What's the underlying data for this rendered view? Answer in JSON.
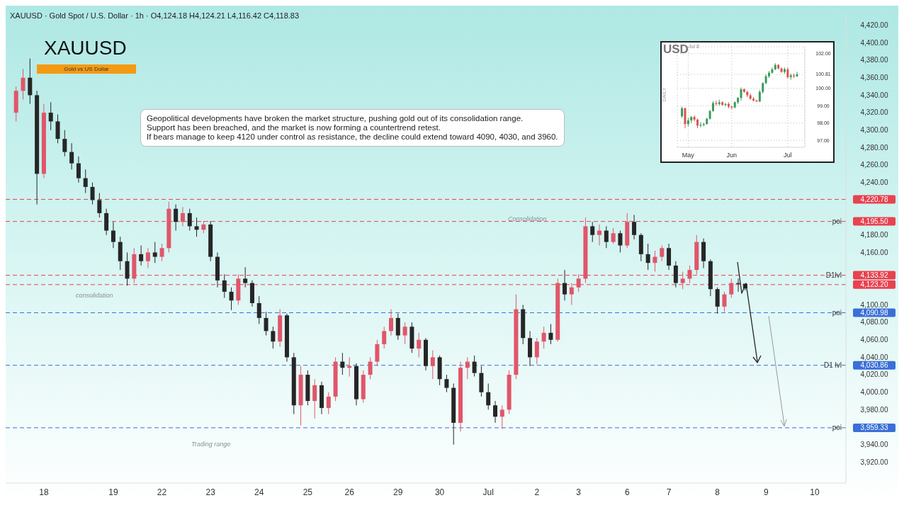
{
  "chart_data": [
    {
      "type": "candlestick",
      "title": "XAUUSD",
      "subtitle": "Gold vs US Dollar",
      "annotations": [
        "XAUUSD · Gold Spot / U.S. Dollar · 1h · O4,124.18 H4,124.21 L4,116.42 C4,118.83",
        "Geopolitical developments have broken the market structure, pushing gold out of its consolidation range.\nSupport has been breached, and the market is now forming a countertrend retest.\nIf bears manage to keep 4120 under control as resistance, the decline could extend toward 4090, 4030, and 3960.",
        "consolidation",
        "Trading range",
        "Consolidation"
      ],
      "categories": [
        null,
        null,
        null,
        null,
        "18",
        null,
        null,
        null,
        null,
        null,
        null,
        null,
        null,
        null,
        "19",
        null,
        null,
        null,
        null,
        null,
        null,
        "22",
        null,
        null,
        null,
        null,
        null,
        null,
        "23",
        null,
        null,
        null,
        null,
        null,
        null,
        "24",
        null,
        null,
        null,
        null,
        null,
        null,
        "25",
        null,
        null,
        null,
        null,
        null,
        "26",
        null,
        null,
        null,
        null,
        null,
        null,
        "29",
        null,
        null,
        null,
        null,
        null,
        "30",
        null,
        null,
        null,
        null,
        null,
        null,
        "Jul",
        null,
        null,
        null,
        null,
        null,
        null,
        "2",
        null,
        null,
        null,
        null,
        null,
        "3",
        null,
        null,
        null,
        null,
        null,
        null,
        "6",
        null,
        null,
        null,
        null,
        null,
        "7",
        null,
        null,
        null,
        null,
        null,
        null,
        "8",
        null,
        null,
        null,
        null,
        null,
        null,
        "9",
        null,
        null,
        null,
        null,
        null,
        null,
        "10",
        null,
        null,
        null,
        null
      ],
      "colors": [
        "#e0566a",
        "#e0566a",
        "#262626",
        "#262626",
        "#e0566a",
        "#262626",
        "#262626",
        "#262626",
        "#262626",
        "#262626",
        "#262626",
        "#262626",
        "#262626",
        "#262626",
        "#262626",
        "#262626",
        "#262626",
        "#e0566a",
        "#262626",
        "#e0566a",
        "#262626",
        "#e0566a",
        "#e0566a",
        "#262626",
        "#e0566a",
        "#262626",
        "#262626",
        "#e0566a",
        "#262626",
        "#262626",
        "#262626",
        "#262626",
        "#e0566a",
        "#262626",
        "#262626",
        "#262626",
        "#262626",
        "#262626",
        "#e0566a",
        "#262626",
        "#262626",
        "#e0566a",
        "#262626",
        "#e0566a",
        "#262626",
        "#e0566a",
        "#e0566a",
        "#262626",
        "#e0566a",
        "#262626",
        "#e0566a",
        "#e0566a",
        "#e0566a",
        "#e0566a",
        "#e0566a",
        "#262626",
        "#e0566a",
        "#262626",
        "#e0566a",
        "#262626",
        "#e0566a",
        "#262626",
        "#262626",
        "#262626",
        "#e0566a",
        "#e0566a",
        "#262626",
        "#262626",
        "#262626",
        "#262626",
        "#e0566a",
        "#e0566a",
        "#e0566a",
        "#262626",
        "#262626",
        "#e0566a",
        "#e0566a",
        "#262626",
        "#e0566a",
        "#262626",
        "#e0566a",
        "#e0566a",
        "#e0566a",
        "#262626",
        "#e0566a",
        "#262626",
        "#e0566a",
        "#262626",
        "#e0566a",
        "#262626",
        "#262626",
        "#262626",
        "#e0566a",
        "#e0566a",
        "#262626",
        "#262626",
        "#e0566a",
        "#e0566a",
        "#e0566a",
        "#262626",
        "#262626",
        "#262626",
        "#e0566a",
        "#e0566a",
        "#262626",
        "#262626",
        null,
        null,
        null,
        null,
        null,
        null,
        null,
        null,
        null,
        null,
        null,
        null,
        null,
        null
      ],
      "ohlc": [
        [
          4320,
          4350,
          4310,
          4345
        ],
        [
          4345,
          4370,
          4335,
          4360
        ],
        [
          4360,
          4382,
          4330,
          4340
        ],
        [
          4340,
          4345,
          4215,
          4250
        ],
        [
          4250,
          4330,
          4245,
          4320
        ],
        [
          4320,
          4332,
          4300,
          4310
        ],
        [
          4310,
          4318,
          4285,
          4290
        ],
        [
          4290,
          4300,
          4270,
          4275
        ],
        [
          4275,
          4285,
          4255,
          4262
        ],
        [
          4262,
          4270,
          4240,
          4245
        ],
        [
          4245,
          4255,
          4228,
          4235
        ],
        [
          4235,
          4240,
          4215,
          4220
        ],
        [
          4220,
          4228,
          4200,
          4205
        ],
        [
          4205,
          4210,
          4180,
          4185
        ],
        [
          4185,
          4195,
          4165,
          4172
        ],
        [
          4172,
          4178,
          4140,
          4150
        ],
        [
          4150,
          4160,
          4122,
          4130
        ],
        [
          4130,
          4165,
          4125,
          4158
        ],
        [
          4158,
          4168,
          4145,
          4150
        ],
        [
          4150,
          4165,
          4142,
          4160
        ],
        [
          4160,
          4172,
          4148,
          4155
        ],
        [
          4155,
          4170,
          4150,
          4165
        ],
        [
          4165,
          4218,
          4160,
          4210
        ],
        [
          4210,
          4215,
          4185,
          4195
        ],
        [
          4195,
          4212,
          4190,
          4205
        ],
        [
          4205,
          4210,
          4185,
          4190
        ],
        [
          4190,
          4200,
          4178,
          4186
        ],
        [
          4186,
          4196,
          4182,
          4192
        ],
        [
          4192,
          4196,
          4150,
          4155
        ],
        [
          4155,
          4160,
          4120,
          4128
        ],
        [
          4128,
          4135,
          4108,
          4115
        ],
        [
          4115,
          4120,
          4094,
          4105
        ],
        [
          4105,
          4135,
          4100,
          4130
        ],
        [
          4130,
          4143,
          4120,
          4125
        ],
        [
          4125,
          4128,
          4098,
          4102
        ],
        [
          4102,
          4110,
          4078,
          4085
        ],
        [
          4085,
          4092,
          4065,
          4070
        ],
        [
          4070,
          4075,
          4050,
          4058
        ],
        [
          4058,
          4095,
          4052,
          4088
        ],
        [
          4088,
          4090,
          4035,
          4040
        ],
        [
          4040,
          4045,
          3975,
          3985
        ],
        [
          3985,
          4030,
          3962,
          4020
        ],
        [
          4020,
          4025,
          3985,
          3990
        ],
        [
          3990,
          4015,
          3970,
          4008
        ],
        [
          4008,
          4012,
          3975,
          3982
        ],
        [
          3982,
          4000,
          3975,
          3995
        ],
        [
          3995,
          4040,
          3990,
          4035
        ],
        [
          4035,
          4045,
          4020,
          4028
        ],
        [
          4028,
          4040,
          4018,
          4030
        ],
        [
          4030,
          4033,
          3985,
          3992
        ],
        [
          3992,
          4025,
          3988,
          4020
        ],
        [
          4020,
          4040,
          4015,
          4035
        ],
        [
          4035,
          4060,
          4030,
          4055
        ],
        [
          4055,
          4075,
          4050,
          4070
        ],
        [
          4070,
          4095,
          4065,
          4085
        ],
        [
          4085,
          4090,
          4060,
          4065
        ],
        [
          4065,
          4080,
          4055,
          4075
        ],
        [
          4075,
          4080,
          4045,
          4050
        ],
        [
          4050,
          4068,
          4040,
          4060
        ],
        [
          4060,
          4062,
          4025,
          4030
        ],
        [
          4030,
          4048,
          4015,
          4040
        ],
        [
          4040,
          4042,
          4008,
          4015
        ],
        [
          4015,
          4020,
          4000,
          4005
        ],
        [
          4005,
          4010,
          3940,
          3965
        ],
        [
          3965,
          4035,
          3955,
          4028
        ],
        [
          4028,
          4040,
          4015,
          4035
        ],
        [
          4035,
          4042,
          4018,
          4022
        ],
        [
          4022,
          4030,
          3995,
          4000
        ],
        [
          4000,
          4010,
          3980,
          3985
        ],
        [
          3985,
          3990,
          3965,
          3972
        ],
        [
          3972,
          3985,
          3958,
          3980
        ],
        [
          3980,
          4025,
          3975,
          4020
        ],
        [
          4020,
          4112,
          4015,
          4095
        ],
        [
          4095,
          4100,
          4055,
          4062
        ],
        [
          4062,
          4070,
          4030,
          4040
        ],
        [
          4040,
          4062,
          4032,
          4058
        ],
        [
          4058,
          4075,
          4050,
          4068
        ],
        [
          4068,
          4078,
          4055,
          4060
        ],
        [
          4060,
          4130,
          4058,
          4125
        ],
        [
          4125,
          4140,
          4105,
          4112
        ],
        [
          4112,
          4125,
          4100,
          4120
        ],
        [
          4120,
          4135,
          4115,
          4130
        ],
        [
          4130,
          4200,
          4125,
          4190
        ],
        [
          4190,
          4195,
          4172,
          4180
        ],
        [
          4180,
          4192,
          4168,
          4185
        ],
        [
          4185,
          4190,
          4165,
          4172
        ],
        [
          4172,
          4188,
          4170,
          4182
        ],
        [
          4182,
          4185,
          4160,
          4168
        ],
        [
          4168,
          4205,
          4165,
          4195
        ],
        [
          4195,
          4203,
          4175,
          4180
        ],
        [
          4180,
          4182,
          4150,
          4158
        ],
        [
          4158,
          4170,
          4140,
          4148
        ],
        [
          4148,
          4162,
          4138,
          4155
        ],
        [
          4155,
          4168,
          4150,
          4165
        ],
        [
          4165,
          4170,
          4140,
          4145
        ],
        [
          4145,
          4150,
          4120,
          4125
        ],
        [
          4125,
          4138,
          4118,
          4130
        ],
        [
          4130,
          4145,
          4125,
          4140
        ],
        [
          4140,
          4180,
          4135,
          4172
        ],
        [
          4172,
          4176,
          4142,
          4150
        ],
        [
          4150,
          4152,
          4110,
          4118
        ],
        [
          4118,
          4120,
          4090,
          4098
        ],
        [
          4098,
          4115,
          4092,
          4112
        ],
        [
          4112,
          4130,
          4108,
          4125
        ],
        [
          4125,
          4130,
          4115,
          4124
        ],
        [
          4124.18,
          4124.21,
          4116.42,
          4118.83
        ],
        null,
        null,
        null,
        null,
        null,
        null,
        null,
        null,
        null,
        null,
        null,
        null,
        null,
        null
      ],
      "ylim": [
        3896,
        4436
      ],
      "yticks": [
        {
          "value": 3920,
          "label": "3,920.00"
        },
        {
          "value": 3940,
          "label": "3,940.00"
        },
        {
          "value": 3959.33,
          "label": "3,959.33"
        },
        {
          "value": 3980,
          "label": "3,980.00"
        },
        {
          "value": 4000,
          "label": "4,000.00"
        },
        {
          "value": 4020,
          "label": "4,020.00"
        },
        {
          "value": 4030.86,
          "label": "4,030.86"
        },
        {
          "value": 4040,
          "label": "4,040.00"
        },
        {
          "value": 4060,
          "label": "4,060.00"
        },
        {
          "value": 4080,
          "label": "4,080.00"
        },
        {
          "value": 4090.98,
          "label": "4,090.98"
        },
        {
          "value": 4100,
          "label": "4,100.00"
        },
        {
          "value": 4123.2,
          "label": "4,123.20"
        },
        {
          "value": 4133.92,
          "label": "4,133.92"
        },
        {
          "value": 4160,
          "label": "4,160.00"
        },
        {
          "value": 4180,
          "label": "4,180.00"
        },
        {
          "value": 4195.5,
          "label": "4,195.50"
        },
        {
          "value": 4220.78,
          "label": "4,220.78"
        },
        {
          "value": 4240,
          "label": "4,240.00"
        },
        {
          "value": 4260,
          "label": "4,260.00"
        },
        {
          "value": 4280,
          "label": "4,280.00"
        },
        {
          "value": 4300,
          "label": "4,300.00"
        },
        {
          "value": 4320,
          "label": "4,320.00"
        },
        {
          "value": 4340,
          "label": "4,340.00"
        },
        {
          "value": 4360,
          "label": "4,360.00"
        },
        {
          "value": 4380,
          "label": "4,380.00"
        },
        {
          "value": 4400,
          "label": "4,400.00"
        },
        {
          "value": 4420,
          "label": "4,420.00"
        }
      ],
      "ref_lines": [
        {
          "axis": "y",
          "value": 4220.78,
          "label": null,
          "color": "#e8424f",
          "line_style": "dashed"
        },
        {
          "axis": "y",
          "value": 4195.5,
          "label": "poi",
          "color": "#e8424f",
          "line_style": "dashed"
        },
        {
          "axis": "y",
          "value": 4133.92,
          "label": "D1lvl",
          "color": "#e8424f",
          "line_style": "dashed"
        },
        {
          "axis": "y",
          "value": 4123.2,
          "label": null,
          "color": "#e8424f",
          "line_style": "dashed"
        },
        {
          "axis": "y",
          "value": 4090.98,
          "label": "poi",
          "color": "#3a6fd8",
          "line_style": "dashed"
        },
        {
          "axis": "y",
          "value": 4030.86,
          "label": "D1 lvl",
          "color": "#3a6fd8",
          "line_style": "dashed"
        },
        {
          "axis": "y",
          "value": 3959.33,
          "label": "poi",
          "color": "#3a6fd8",
          "line_style": "dashed"
        }
      ]
    },
    {
      "type": "candlestick",
      "title": "USD",
      "subtitle": "Jul 8",
      "ylabel": "DAILY",
      "grid": true,
      "categories": [
        null,
        null,
        "May",
        null,
        null,
        null,
        null,
        null,
        null,
        null,
        null,
        null,
        null,
        null,
        null,
        null,
        "Jun",
        null,
        null,
        null,
        null,
        null,
        null,
        null,
        null,
        null,
        null,
        null,
        null,
        null,
        null,
        null,
        null,
        null,
        "Jul",
        null,
        null,
        null,
        null,
        null
      ],
      "colors": [
        "#3a9a5b",
        "#d9534f",
        "#3a9a5b",
        "#3a9a5b",
        "#d9534f",
        "#d9534f",
        "#3a9a5b",
        "#3a9a5b",
        "#3a9a5b",
        "#3a9a5b",
        "#3a9a5b",
        "#d9534f",
        "#3a9a5b",
        "#d9534f",
        "#3a9a5b",
        "#d9534f",
        "#d9534f",
        "#3a9a5b",
        "#3a9a5b",
        "#3a9a5b",
        "#d9534f",
        "#d9534f",
        "#d9534f",
        "#d9534f",
        "#d9534f",
        "#3a9a5b",
        "#3a9a5b",
        "#3a9a5b",
        "#3a9a5b",
        "#3a9a5b",
        "#3a9a5b",
        "#d9534f",
        "#d9534f",
        "#3a9a5b",
        "#d9534f",
        "#3a9a5b",
        "#d9534f",
        "#3a9a5b",
        null,
        null
      ],
      "ohlc": [
        [
          98.39,
          98.95,
          98.3,
          98.85
        ],
        [
          98.85,
          98.9,
          97.7,
          97.94
        ],
        [
          97.94,
          98.3,
          97.8,
          98.15
        ],
        [
          98.15,
          98.4,
          98.0,
          98.35
        ],
        [
          98.35,
          98.45,
          98.1,
          98.2
        ],
        [
          98.2,
          98.25,
          97.7,
          97.85
        ],
        [
          97.85,
          98.05,
          97.75,
          97.9
        ],
        [
          97.9,
          98.0,
          97.8,
          97.95
        ],
        [
          97.95,
          98.3,
          97.9,
          98.25
        ],
        [
          98.25,
          98.75,
          98.2,
          98.7
        ],
        [
          98.7,
          99.25,
          98.65,
          99.15
        ],
        [
          99.15,
          99.3,
          99.0,
          99.1
        ],
        [
          99.1,
          99.35,
          99.0,
          99.2
        ],
        [
          99.2,
          99.25,
          99.0,
          99.05
        ],
        [
          99.05,
          99.15,
          98.95,
          99.1
        ],
        [
          99.1,
          99.2,
          98.85,
          98.95
        ],
        [
          98.95,
          99.0,
          98.8,
          98.9
        ],
        [
          98.9,
          99.25,
          98.85,
          99.2
        ],
        [
          99.2,
          99.5,
          99.1,
          99.45
        ],
        [
          99.45,
          100.05,
          99.3,
          99.95
        ],
        [
          99.95,
          100.0,
          99.75,
          99.8
        ],
        [
          99.8,
          99.85,
          99.5,
          99.6
        ],
        [
          99.6,
          99.7,
          99.35,
          99.4
        ],
        [
          99.4,
          99.5,
          99.25,
          99.3
        ],
        [
          99.3,
          99.35,
          99.2,
          99.25
        ],
        [
          99.25,
          99.9,
          99.2,
          99.8
        ],
        [
          99.8,
          100.35,
          99.7,
          100.3
        ],
        [
          100.3,
          100.8,
          100.25,
          100.7
        ],
        [
          100.7,
          101.0,
          100.6,
          100.9
        ],
        [
          100.9,
          101.2,
          100.85,
          101.1
        ],
        [
          101.1,
          101.45,
          101.05,
          101.35
        ],
        [
          101.35,
          101.4,
          101.1,
          101.15
        ],
        [
          101.15,
          101.2,
          100.9,
          100.95
        ],
        [
          100.95,
          101.2,
          100.85,
          101.1
        ],
        [
          101.1,
          101.2,
          100.55,
          100.65
        ],
        [
          100.65,
          100.85,
          100.5,
          100.75
        ],
        [
          100.75,
          100.85,
          100.6,
          100.7
        ],
        [
          100.7,
          100.95,
          100.65,
          100.81
        ],
        null,
        null
      ],
      "ylim": [
        96.6,
        102.4
      ],
      "yticks": [
        {
          "value": 97,
          "label": "97.00"
        },
        {
          "value": 98,
          "label": "98.00"
        },
        {
          "value": 99,
          "label": "99.00"
        },
        {
          "value": 100,
          "label": "100.00"
        },
        {
          "value": 100.81,
          "label": "100.81"
        },
        {
          "value": 102,
          "label": "102.00"
        }
      ]
    }
  ]
}
